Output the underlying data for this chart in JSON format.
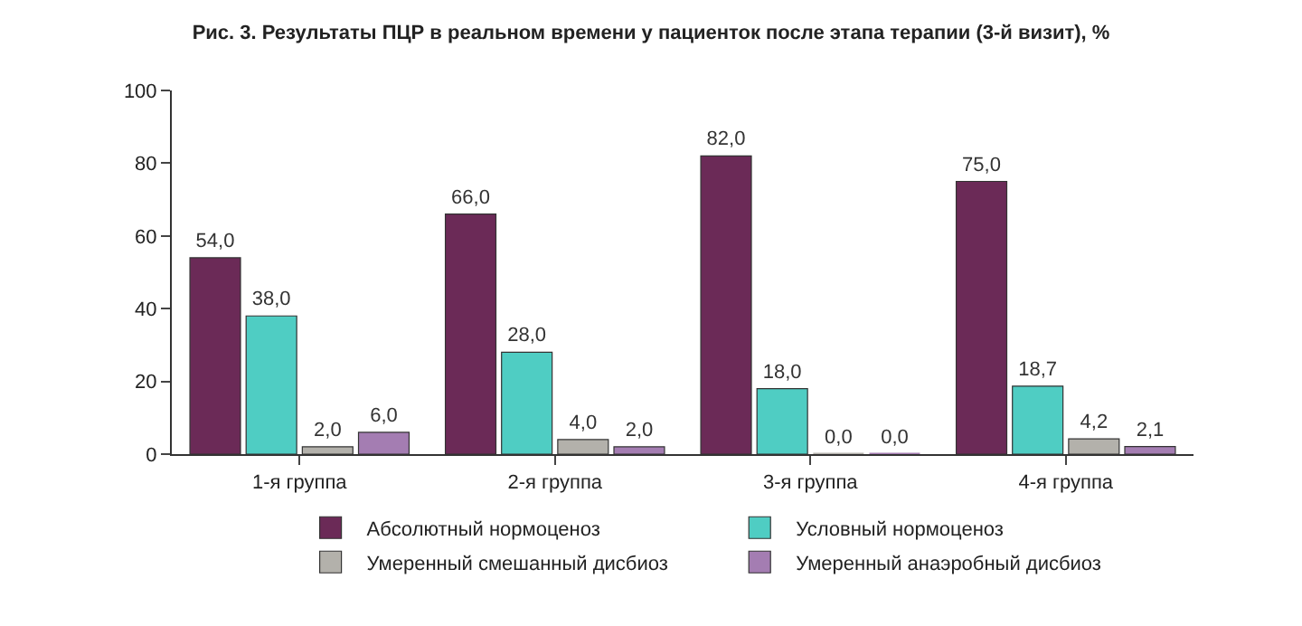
{
  "chart_data": {
    "type": "bar",
    "title": "Рис. 3. Результаты ПЦР в реальном времени у пациенток после этапа терапии (3-й визит), %",
    "categories": [
      "1-я группа",
      "2-я группа",
      "3-я группа",
      "4-я группа"
    ],
    "series": [
      {
        "name": "Абсолютный нормоценоз",
        "color": "#6b2a57",
        "values": [
          54.0,
          66.0,
          82.0,
          75.0
        ],
        "value_labels": [
          "54,0",
          "66,0",
          "82,0",
          "75,0"
        ]
      },
      {
        "name": "Условный нормоценоз",
        "color": "#4fcdc3",
        "values": [
          38.0,
          28.0,
          18.0,
          18.7
        ],
        "value_labels": [
          "38,0",
          "28,0",
          "18,0",
          "18,7"
        ]
      },
      {
        "name": "Умеренный смешанный дисбиоз",
        "color": "#b3b1ab",
        "values": [
          2.0,
          4.0,
          0.0,
          4.2
        ],
        "value_labels": [
          "2,0",
          "4,0",
          "0,0",
          "4,2"
        ]
      },
      {
        "name": "Умеренный анаэробный дисбиоз",
        "color": "#a47db2",
        "values": [
          6.0,
          2.0,
          0.0,
          2.1
        ],
        "value_labels": [
          "6,0",
          "2,0",
          "0,0",
          "2,1"
        ]
      }
    ],
    "ylim": [
      0,
      100
    ],
    "yticks": [
      0,
      20,
      40,
      60,
      80,
      100
    ],
    "legend": "bottom"
  }
}
